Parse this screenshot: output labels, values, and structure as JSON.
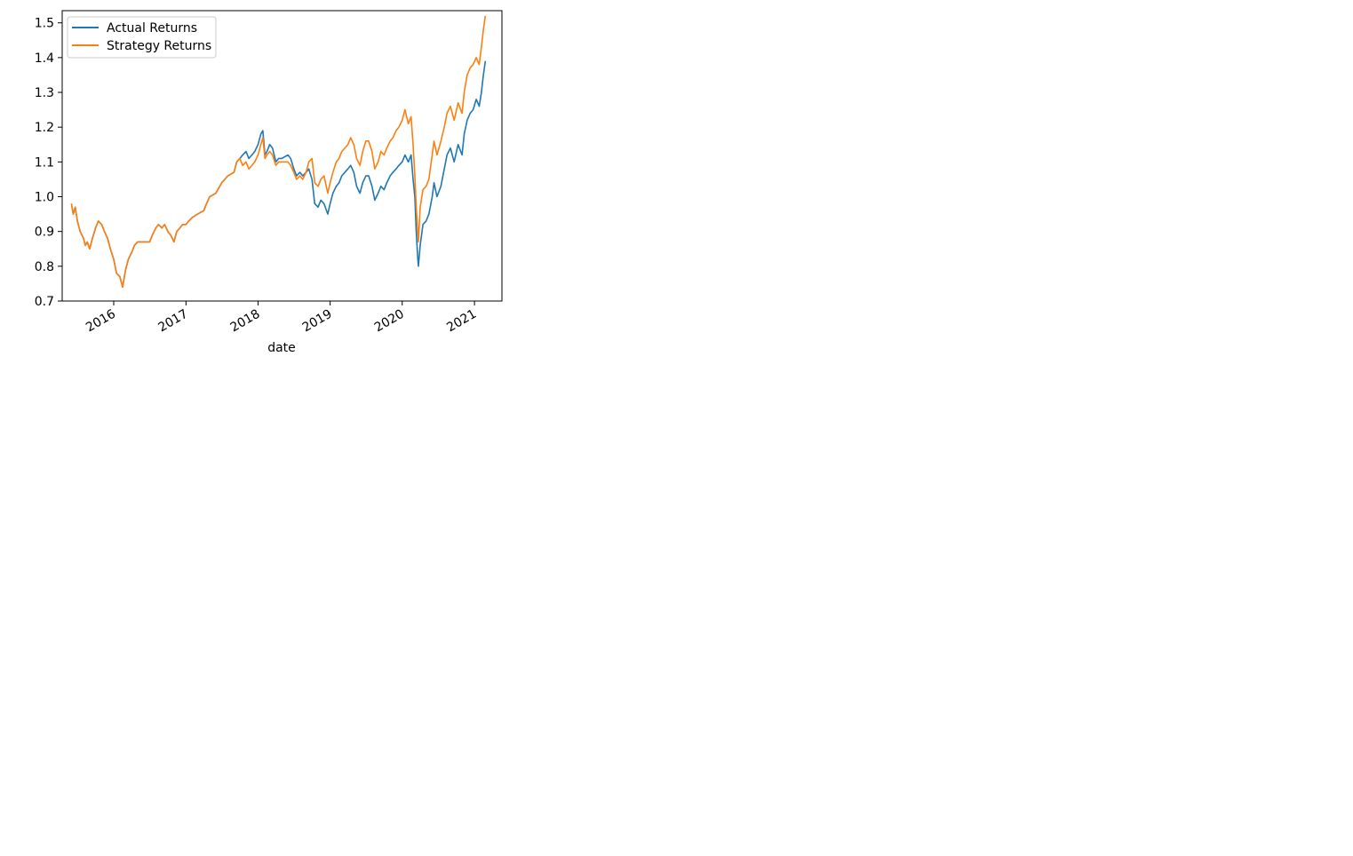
{
  "chart_data": {
    "type": "line",
    "title": "",
    "xlabel": "date",
    "ylabel": "",
    "x_tick_labels": [
      "2016",
      "2017",
      "2018",
      "2019",
      "2020",
      "2021"
    ],
    "y_tick_labels": [
      "0.7",
      "0.8",
      "0.9",
      "1.0",
      "1.1",
      "1.2",
      "1.3",
      "1.4",
      "1.5"
    ],
    "x_ticks": [
      "2016-01-01",
      "2017-01-01",
      "2018-01-01",
      "2019-01-01",
      "2020-01-01",
      "2021-01-01"
    ],
    "y_ticks": [
      0.7,
      0.8,
      0.9,
      1.0,
      1.1,
      1.2,
      1.3,
      1.4,
      1.5
    ],
    "xlim": [
      "2015-04-15",
      "2021-05-20"
    ],
    "ylim": [
      0.7,
      1.535
    ],
    "grid": false,
    "legend_position": "upper-left",
    "series": [
      {
        "name": "Actual Returns",
        "color": "#1f77b4",
        "points": [
          [
            "2015-06-01",
            0.98
          ],
          [
            "2015-06-10",
            0.95
          ],
          [
            "2015-06-20",
            0.97
          ],
          [
            "2015-07-01",
            0.93
          ],
          [
            "2015-07-15",
            0.9
          ],
          [
            "2015-08-01",
            0.88
          ],
          [
            "2015-08-10",
            0.86
          ],
          [
            "2015-08-20",
            0.87
          ],
          [
            "2015-09-01",
            0.85
          ],
          [
            "2015-09-15",
            0.88
          ],
          [
            "2015-10-01",
            0.91
          ],
          [
            "2015-10-15",
            0.93
          ],
          [
            "2015-11-01",
            0.92
          ],
          [
            "2015-11-15",
            0.9
          ],
          [
            "2015-12-01",
            0.88
          ],
          [
            "2015-12-15",
            0.85
          ],
          [
            "2016-01-01",
            0.82
          ],
          [
            "2016-01-15",
            0.78
          ],
          [
            "2016-02-01",
            0.77
          ],
          [
            "2016-02-15",
            0.74
          ],
          [
            "2016-03-01",
            0.79
          ],
          [
            "2016-03-15",
            0.82
          ],
          [
            "2016-04-01",
            0.84
          ],
          [
            "2016-04-15",
            0.86
          ],
          [
            "2016-05-01",
            0.87
          ],
          [
            "2016-07-01",
            0.87
          ],
          [
            "2016-07-15",
            0.89
          ],
          [
            "2016-08-01",
            0.91
          ],
          [
            "2016-08-15",
            0.92
          ],
          [
            "2016-09-01",
            0.91
          ],
          [
            "2016-09-15",
            0.92
          ],
          [
            "2016-10-01",
            0.9
          ],
          [
            "2016-10-15",
            0.89
          ],
          [
            "2016-11-01",
            0.87
          ],
          [
            "2016-11-15",
            0.9
          ],
          [
            "2016-12-01",
            0.91
          ],
          [
            "2016-12-15",
            0.92
          ],
          [
            "2017-01-01",
            0.92
          ],
          [
            "2017-01-15",
            0.93
          ],
          [
            "2017-02-01",
            0.94
          ],
          [
            "2017-03-01",
            0.95
          ],
          [
            "2017-04-01",
            0.96
          ],
          [
            "2017-04-15",
            0.98
          ],
          [
            "2017-05-01",
            1.0
          ],
          [
            "2017-06-01",
            1.01
          ],
          [
            "2017-07-01",
            1.04
          ],
          [
            "2017-08-01",
            1.06
          ],
          [
            "2017-09-01",
            1.07
          ],
          [
            "2017-09-15",
            1.1
          ],
          [
            "2017-10-01",
            1.11
          ],
          [
            "2017-10-15",
            1.12
          ],
          [
            "2017-11-01",
            1.13
          ],
          [
            "2017-11-15",
            1.11
          ],
          [
            "2017-12-01",
            1.12
          ],
          [
            "2017-12-15",
            1.13
          ],
          [
            "2018-01-01",
            1.15
          ],
          [
            "2018-01-15",
            1.18
          ],
          [
            "2018-01-25",
            1.19
          ],
          [
            "2018-02-05",
            1.12
          ],
          [
            "2018-02-15",
            1.13
          ],
          [
            "2018-03-01",
            1.15
          ],
          [
            "2018-03-15",
            1.14
          ],
          [
            "2018-04-01",
            1.1
          ],
          [
            "2018-04-15",
            1.11
          ],
          [
            "2018-05-01",
            1.11
          ],
          [
            "2018-06-01",
            1.12
          ],
          [
            "2018-06-15",
            1.11
          ],
          [
            "2018-07-01",
            1.08
          ],
          [
            "2018-07-15",
            1.06
          ],
          [
            "2018-08-01",
            1.07
          ],
          [
            "2018-08-15",
            1.06
          ],
          [
            "2018-09-01",
            1.07
          ],
          [
            "2018-09-15",
            1.08
          ],
          [
            "2018-10-01",
            1.05
          ],
          [
            "2018-10-15",
            0.98
          ],
          [
            "2018-11-01",
            0.97
          ],
          [
            "2018-11-15",
            0.99
          ],
          [
            "2018-12-01",
            0.98
          ],
          [
            "2018-12-20",
            0.95
          ],
          [
            "2019-01-01",
            0.98
          ],
          [
            "2019-01-15",
            1.01
          ],
          [
            "2019-02-01",
            1.03
          ],
          [
            "2019-02-15",
            1.04
          ],
          [
            "2019-03-01",
            1.06
          ],
          [
            "2019-04-01",
            1.08
          ],
          [
            "2019-04-15",
            1.09
          ],
          [
            "2019-05-01",
            1.07
          ],
          [
            "2019-05-15",
            1.03
          ],
          [
            "2019-06-01",
            1.01
          ],
          [
            "2019-06-15",
            1.04
          ],
          [
            "2019-07-01",
            1.06
          ],
          [
            "2019-07-15",
            1.06
          ],
          [
            "2019-08-01",
            1.03
          ],
          [
            "2019-08-15",
            0.99
          ],
          [
            "2019-09-01",
            1.01
          ],
          [
            "2019-09-15",
            1.03
          ],
          [
            "2019-10-01",
            1.02
          ],
          [
            "2019-10-15",
            1.04
          ],
          [
            "2019-11-01",
            1.06
          ],
          [
            "2019-11-15",
            1.07
          ],
          [
            "2019-12-01",
            1.08
          ],
          [
            "2019-12-15",
            1.09
          ],
          [
            "2020-01-01",
            1.1
          ],
          [
            "2020-01-15",
            1.12
          ],
          [
            "2020-02-01",
            1.1
          ],
          [
            "2020-02-15",
            1.12
          ],
          [
            "2020-02-25",
            1.05
          ],
          [
            "2020-03-05",
            1.0
          ],
          [
            "2020-03-12",
            0.9
          ],
          [
            "2020-03-20",
            0.82
          ],
          [
            "2020-03-23",
            0.8
          ],
          [
            "2020-04-01",
            0.86
          ],
          [
            "2020-04-15",
            0.92
          ],
          [
            "2020-05-01",
            0.93
          ],
          [
            "2020-05-15",
            0.95
          ],
          [
            "2020-06-01",
            1.0
          ],
          [
            "2020-06-10",
            1.04
          ],
          [
            "2020-06-25",
            1.0
          ],
          [
            "2020-07-15",
            1.03
          ],
          [
            "2020-08-01",
            1.08
          ],
          [
            "2020-08-15",
            1.12
          ],
          [
            "2020-09-01",
            1.14
          ],
          [
            "2020-09-20",
            1.1
          ],
          [
            "2020-10-10",
            1.15
          ],
          [
            "2020-10-30",
            1.12
          ],
          [
            "2020-11-10",
            1.18
          ],
          [
            "2020-11-25",
            1.22
          ],
          [
            "2020-12-10",
            1.24
          ],
          [
            "2020-12-25",
            1.25
          ],
          [
            "2021-01-10",
            1.28
          ],
          [
            "2021-01-25",
            1.26
          ],
          [
            "2021-02-05",
            1.3
          ],
          [
            "2021-02-15",
            1.35
          ],
          [
            "2021-02-25",
            1.39
          ]
        ]
      },
      {
        "name": "Strategy Returns",
        "color": "#ff7f0e",
        "points": [
          [
            "2015-06-01",
            0.98
          ],
          [
            "2015-06-10",
            0.95
          ],
          [
            "2015-06-20",
            0.97
          ],
          [
            "2015-07-01",
            0.93
          ],
          [
            "2015-07-15",
            0.9
          ],
          [
            "2015-08-01",
            0.88
          ],
          [
            "2015-08-10",
            0.86
          ],
          [
            "2015-08-20",
            0.87
          ],
          [
            "2015-09-01",
            0.85
          ],
          [
            "2015-09-15",
            0.88
          ],
          [
            "2015-10-01",
            0.91
          ],
          [
            "2015-10-15",
            0.93
          ],
          [
            "2015-11-01",
            0.92
          ],
          [
            "2015-11-15",
            0.9
          ],
          [
            "2015-12-01",
            0.88
          ],
          [
            "2015-12-15",
            0.85
          ],
          [
            "2016-01-01",
            0.82
          ],
          [
            "2016-01-15",
            0.78
          ],
          [
            "2016-02-01",
            0.77
          ],
          [
            "2016-02-15",
            0.74
          ],
          [
            "2016-03-01",
            0.79
          ],
          [
            "2016-03-15",
            0.82
          ],
          [
            "2016-04-01",
            0.84
          ],
          [
            "2016-04-15",
            0.86
          ],
          [
            "2016-05-01",
            0.87
          ],
          [
            "2016-07-01",
            0.87
          ],
          [
            "2016-07-15",
            0.89
          ],
          [
            "2016-08-01",
            0.91
          ],
          [
            "2016-08-15",
            0.92
          ],
          [
            "2016-09-01",
            0.91
          ],
          [
            "2016-09-15",
            0.92
          ],
          [
            "2016-10-01",
            0.9
          ],
          [
            "2016-10-15",
            0.89
          ],
          [
            "2016-11-01",
            0.87
          ],
          [
            "2016-11-15",
            0.9
          ],
          [
            "2016-12-01",
            0.91
          ],
          [
            "2016-12-15",
            0.92
          ],
          [
            "2017-01-01",
            0.92
          ],
          [
            "2017-01-15",
            0.93
          ],
          [
            "2017-02-01",
            0.94
          ],
          [
            "2017-03-01",
            0.95
          ],
          [
            "2017-04-01",
            0.96
          ],
          [
            "2017-04-15",
            0.98
          ],
          [
            "2017-05-01",
            1.0
          ],
          [
            "2017-06-01",
            1.01
          ],
          [
            "2017-07-01",
            1.04
          ],
          [
            "2017-08-01",
            1.06
          ],
          [
            "2017-09-01",
            1.07
          ],
          [
            "2017-09-15",
            1.1
          ],
          [
            "2017-10-01",
            1.11
          ],
          [
            "2017-10-15",
            1.09
          ],
          [
            "2017-11-01",
            1.1
          ],
          [
            "2017-11-15",
            1.08
          ],
          [
            "2017-12-01",
            1.09
          ],
          [
            "2017-12-15",
            1.1
          ],
          [
            "2018-01-01",
            1.12
          ],
          [
            "2018-01-15",
            1.15
          ],
          [
            "2018-01-25",
            1.17
          ],
          [
            "2018-02-05",
            1.11
          ],
          [
            "2018-02-15",
            1.12
          ],
          [
            "2018-03-01",
            1.13
          ],
          [
            "2018-03-15",
            1.12
          ],
          [
            "2018-04-01",
            1.09
          ],
          [
            "2018-04-15",
            1.1
          ],
          [
            "2018-05-01",
            1.1
          ],
          [
            "2018-06-01",
            1.1
          ],
          [
            "2018-06-15",
            1.09
          ],
          [
            "2018-07-01",
            1.07
          ],
          [
            "2018-07-15",
            1.05
          ],
          [
            "2018-08-01",
            1.06
          ],
          [
            "2018-08-15",
            1.05
          ],
          [
            "2018-09-01",
            1.07
          ],
          [
            "2018-09-15",
            1.1
          ],
          [
            "2018-10-01",
            1.11
          ],
          [
            "2018-10-15",
            1.04
          ],
          [
            "2018-11-01",
            1.03
          ],
          [
            "2018-11-15",
            1.05
          ],
          [
            "2018-12-01",
            1.06
          ],
          [
            "2018-12-20",
            1.01
          ],
          [
            "2019-01-01",
            1.04
          ],
          [
            "2019-01-15",
            1.07
          ],
          [
            "2019-02-01",
            1.1
          ],
          [
            "2019-02-15",
            1.11
          ],
          [
            "2019-03-01",
            1.13
          ],
          [
            "2019-04-01",
            1.15
          ],
          [
            "2019-04-15",
            1.17
          ],
          [
            "2019-05-01",
            1.15
          ],
          [
            "2019-05-15",
            1.11
          ],
          [
            "2019-06-01",
            1.09
          ],
          [
            "2019-06-15",
            1.13
          ],
          [
            "2019-07-01",
            1.16
          ],
          [
            "2019-07-15",
            1.16
          ],
          [
            "2019-08-01",
            1.13
          ],
          [
            "2019-08-15",
            1.08
          ],
          [
            "2019-09-01",
            1.1
          ],
          [
            "2019-09-15",
            1.13
          ],
          [
            "2019-10-01",
            1.12
          ],
          [
            "2019-10-15",
            1.14
          ],
          [
            "2019-11-01",
            1.16
          ],
          [
            "2019-11-15",
            1.17
          ],
          [
            "2019-12-01",
            1.19
          ],
          [
            "2019-12-15",
            1.2
          ],
          [
            "2020-01-01",
            1.22
          ],
          [
            "2020-01-15",
            1.25
          ],
          [
            "2020-02-01",
            1.21
          ],
          [
            "2020-02-15",
            1.23
          ],
          [
            "2020-02-25",
            1.15
          ],
          [
            "2020-03-05",
            1.06
          ],
          [
            "2020-03-12",
            0.97
          ],
          [
            "2020-03-20",
            0.9
          ],
          [
            "2020-03-23",
            0.87
          ],
          [
            "2020-04-01",
            0.97
          ],
          [
            "2020-04-15",
            1.02
          ],
          [
            "2020-05-01",
            1.03
          ],
          [
            "2020-05-15",
            1.05
          ],
          [
            "2020-06-01",
            1.12
          ],
          [
            "2020-06-10",
            1.16
          ],
          [
            "2020-06-25",
            1.12
          ],
          [
            "2020-07-15",
            1.16
          ],
          [
            "2020-08-01",
            1.2
          ],
          [
            "2020-08-15",
            1.24
          ],
          [
            "2020-09-01",
            1.26
          ],
          [
            "2020-09-20",
            1.22
          ],
          [
            "2020-10-10",
            1.27
          ],
          [
            "2020-10-30",
            1.24
          ],
          [
            "2020-11-10",
            1.3
          ],
          [
            "2020-11-25",
            1.35
          ],
          [
            "2020-12-10",
            1.37
          ],
          [
            "2020-12-25",
            1.38
          ],
          [
            "2021-01-10",
            1.4
          ],
          [
            "2021-01-25",
            1.38
          ],
          [
            "2021-02-05",
            1.43
          ],
          [
            "2021-02-15",
            1.48
          ],
          [
            "2021-02-25",
            1.52
          ]
        ]
      }
    ]
  }
}
